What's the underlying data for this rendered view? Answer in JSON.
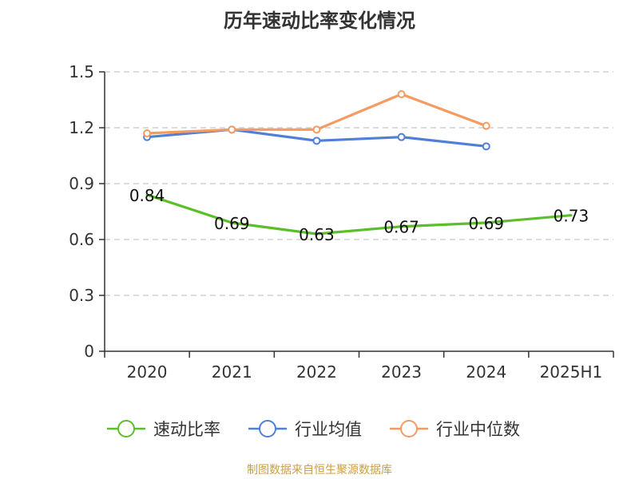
{
  "source_note": "制图数据来自恒生聚源数据库",
  "colors": {
    "green": "#5bbf2a",
    "blue": "#4f7fd6",
    "orange": "#f59a61",
    "axis": "#333333",
    "grid": "#c8c8c8",
    "source": "#c8a046"
  },
  "chart_data": {
    "type": "line",
    "title": "历年速动比率变化情况",
    "categories": [
      "2020",
      "2021",
      "2022",
      "2023",
      "2024",
      "2025H1"
    ],
    "yticks": [
      "0",
      "0.3",
      "0.6",
      "0.9",
      "1.2",
      "1.5"
    ],
    "ylim": [
      0,
      1.5
    ],
    "grid": true,
    "legend_position": "bottom",
    "series": [
      {
        "name": "速动比率",
        "color": "#5bbf2a",
        "values": [
          0.84,
          0.69,
          0.63,
          0.67,
          0.69,
          0.73
        ],
        "labels": [
          "0.84",
          "0.69",
          "0.63",
          "0.67",
          "0.69",
          "0.73"
        ],
        "show_labels": true,
        "show_points": false
      },
      {
        "name": "行业均值",
        "color": "#4f7fd6",
        "values": [
          1.15,
          1.19,
          1.13,
          1.15,
          1.1,
          null
        ],
        "show_labels": false,
        "show_points": true
      },
      {
        "name": "行业中位数",
        "color": "#f59a61",
        "values": [
          1.17,
          1.19,
          1.19,
          1.38,
          1.21,
          null
        ],
        "show_labels": false,
        "show_points": true
      }
    ]
  }
}
